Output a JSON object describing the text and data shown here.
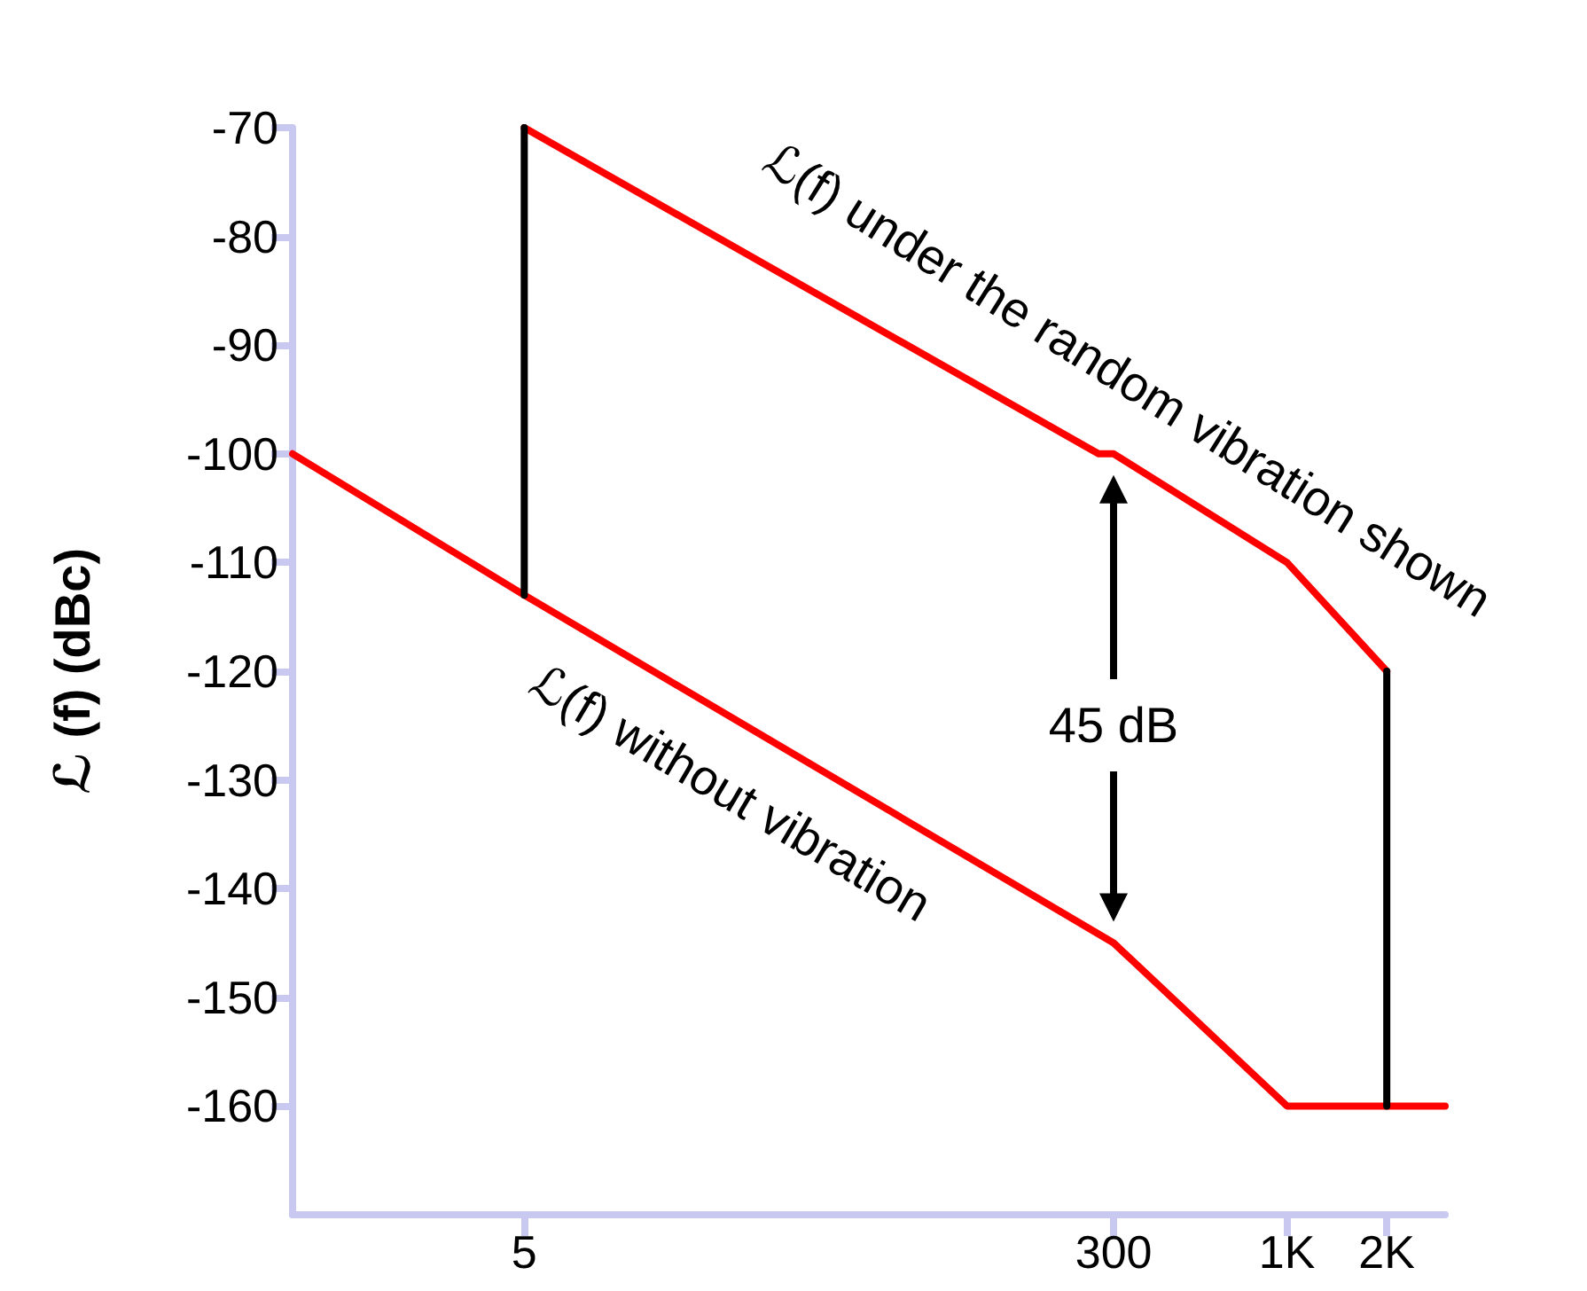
{
  "chart_data": {
    "type": "line",
    "ylabel": "ℒ (f) (dBc)",
    "log": "x",
    "xlim": [
      1,
      3000
    ],
    "xticks": [
      5,
      300,
      {
        "value": 1000,
        "label": "1K"
      },
      {
        "value": 2000,
        "label": "2K"
      }
    ],
    "ylim": [
      -170,
      -70
    ],
    "yticks": [
      -70,
      -80,
      -90,
      -100,
      -110,
      -120,
      -130,
      -140,
      -150,
      -160
    ],
    "series": [
      {
        "color": "#ff0000",
        "x": [
          5,
          270,
          300,
          1000,
          2000
        ],
        "values": [
          -70,
          -100,
          -100,
          -110,
          -120
        ]
      },
      {
        "color": "#ff0000",
        "x": [
          1,
          5,
          300,
          1000,
          2000,
          3000
        ],
        "values": [
          -100,
          -113,
          -145,
          -160,
          -160,
          -160
        ]
      },
      {
        "color": "#000000",
        "x": [
          5,
          5
        ],
        "values": [
          -70,
          -113
        ]
      },
      {
        "color": "#000000",
        "x": [
          2000,
          2000
        ],
        "values": [
          -120,
          -160
        ]
      }
    ],
    "annotations": [
      "ℒ(f) under the random vibration shown",
      "ℒ(f) without vibration",
      "45 dB"
    ],
    "grid": false,
    "marker": "none",
    "line_style": "solid"
  }
}
